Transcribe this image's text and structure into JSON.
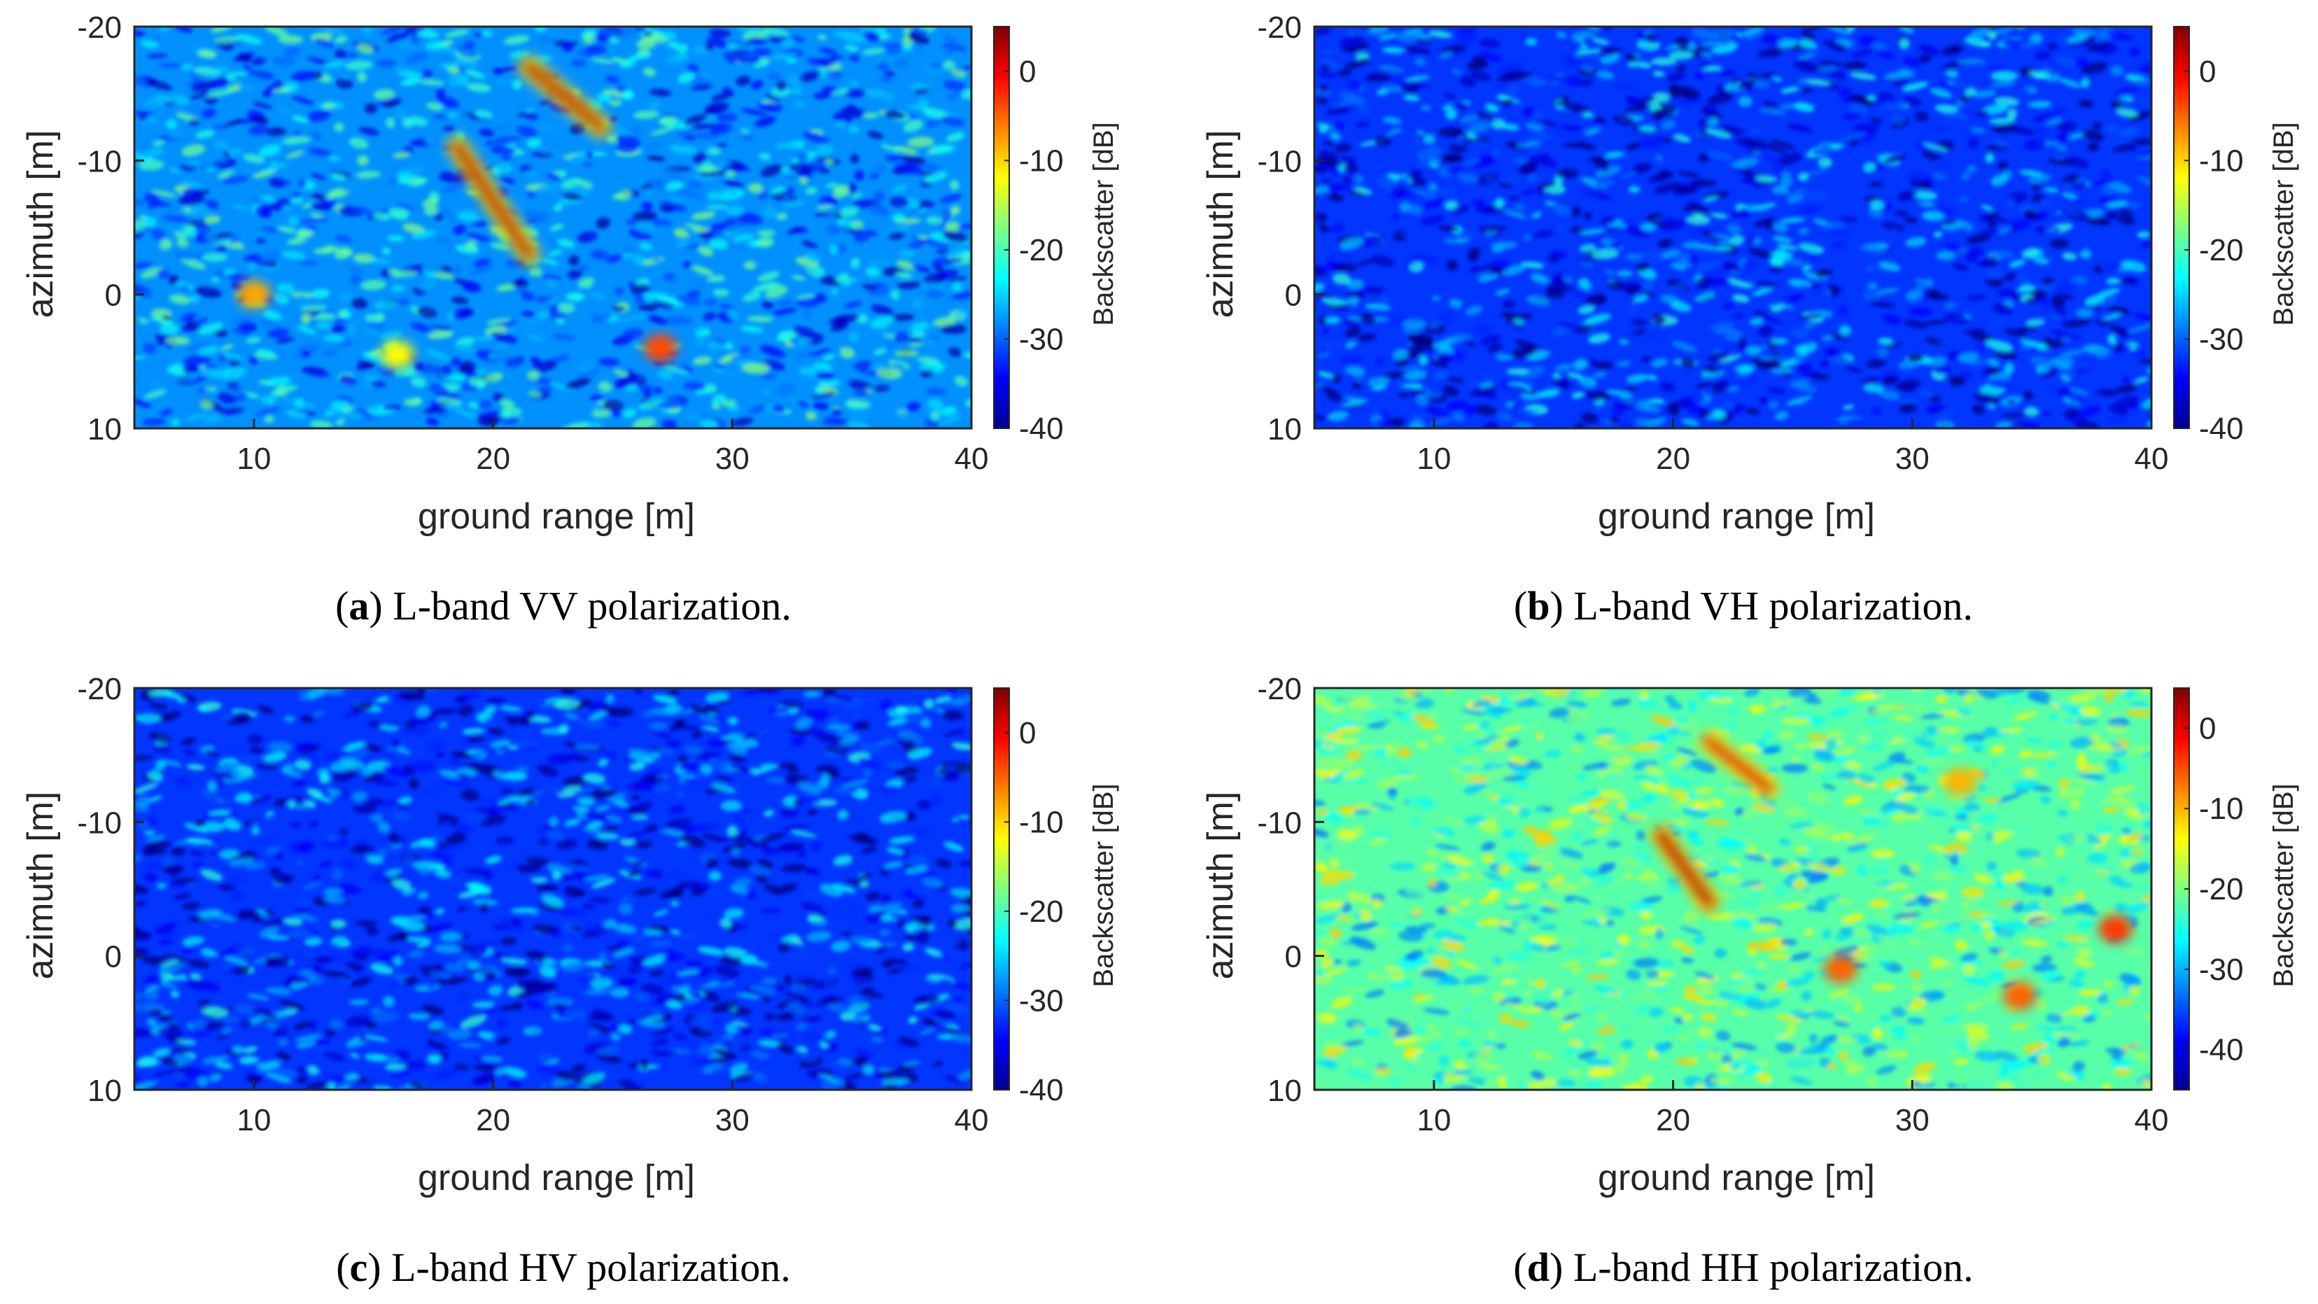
{
  "colormap": "jet",
  "colors": {
    "axis": "#262626",
    "background": "#ffffff"
  },
  "chart_data": [
    {
      "type": "heatmap",
      "panel": "a",
      "caption_letter": "a",
      "caption_text": "L-band VV polarization.",
      "xlabel": "ground range [m]",
      "ylabel": "azimuth [m]",
      "xlim": [
        5,
        40
      ],
      "ylim": [
        -20,
        10
      ],
      "xticks": [
        10,
        20,
        30,
        40
      ],
      "yticks": [
        -20,
        -10,
        0,
        10
      ],
      "colorbar": {
        "label": "Backscatter [dB]",
        "lim": [
          -40,
          5
        ],
        "ticks": [
          0,
          -10,
          -20,
          -30,
          -40
        ]
      },
      "background_db": -28,
      "features": [
        {
          "kind": "streak",
          "x1": 18.5,
          "y1": -11,
          "x2": 21.5,
          "y2": -3,
          "db": 2
        },
        {
          "kind": "streak",
          "x1": 21.5,
          "y1": -17,
          "x2": 24.5,
          "y2": -12.5,
          "db": 2
        },
        {
          "kind": "blob",
          "x": 27,
          "y": 4,
          "db": -4
        },
        {
          "kind": "blob",
          "x": 10,
          "y": 0,
          "db": -8
        },
        {
          "kind": "blob",
          "x": 16,
          "y": 4.5,
          "db": -12
        }
      ]
    },
    {
      "type": "heatmap",
      "panel": "b",
      "caption_letter": "b",
      "caption_text": "L-band VH polarization.",
      "xlabel": "ground range [m]",
      "ylabel": "azimuth [m]",
      "xlim": [
        5,
        40
      ],
      "ylim": [
        -20,
        10
      ],
      "xticks": [
        10,
        20,
        30,
        40
      ],
      "yticks": [
        -20,
        -10,
        0,
        10
      ],
      "colorbar": {
        "label": "Backscatter [dB]",
        "lim": [
          -40,
          5
        ],
        "ticks": [
          0,
          -10,
          -20,
          -30,
          -40
        ]
      },
      "background_db": -32,
      "features": []
    },
    {
      "type": "heatmap",
      "panel": "c",
      "caption_letter": "c",
      "caption_text": "L-band HV polarization.",
      "xlabel": "ground range [m]",
      "ylabel": "azimuth [m]",
      "xlim": [
        5,
        40
      ],
      "ylim": [
        -20,
        10
      ],
      "xticks": [
        10,
        20,
        30,
        40
      ],
      "yticks": [
        -20,
        -10,
        0,
        10
      ],
      "colorbar": {
        "label": "Backscatter [dB]",
        "lim": [
          -40,
          5
        ],
        "ticks": [
          0,
          -10,
          -20,
          -30,
          -40
        ]
      },
      "background_db": -32,
      "features": []
    },
    {
      "type": "heatmap",
      "panel": "d",
      "caption_letter": "d",
      "caption_text": "L-band HH polarization.",
      "xlabel": "ground range [m]",
      "ylabel": "azimuth [m]",
      "xlim": [
        5,
        40
      ],
      "ylim": [
        -20,
        10
      ],
      "xticks": [
        10,
        20,
        30,
        40
      ],
      "yticks": [
        -20,
        -10,
        0,
        10
      ],
      "colorbar": {
        "label": "Backscatter [dB]",
        "lim": [
          -45,
          5
        ],
        "ticks": [
          0,
          -10,
          -20,
          -30,
          -40
        ]
      },
      "background_db": -22,
      "features": [
        {
          "kind": "streak",
          "x1": 19.5,
          "y1": -9,
          "x2": 21.5,
          "y2": -4,
          "db": 2
        },
        {
          "kind": "streak",
          "x1": 21.5,
          "y1": -16,
          "x2": 24,
          "y2": -12.5,
          "db": 0
        },
        {
          "kind": "blob",
          "x": 27,
          "y": 1,
          "db": -6
        },
        {
          "kind": "blob",
          "x": 34.5,
          "y": 3,
          "db": -6
        },
        {
          "kind": "blob",
          "x": 38.5,
          "y": -2,
          "db": -4
        },
        {
          "kind": "blob",
          "x": 32,
          "y": -13,
          "db": -10
        }
      ]
    }
  ]
}
